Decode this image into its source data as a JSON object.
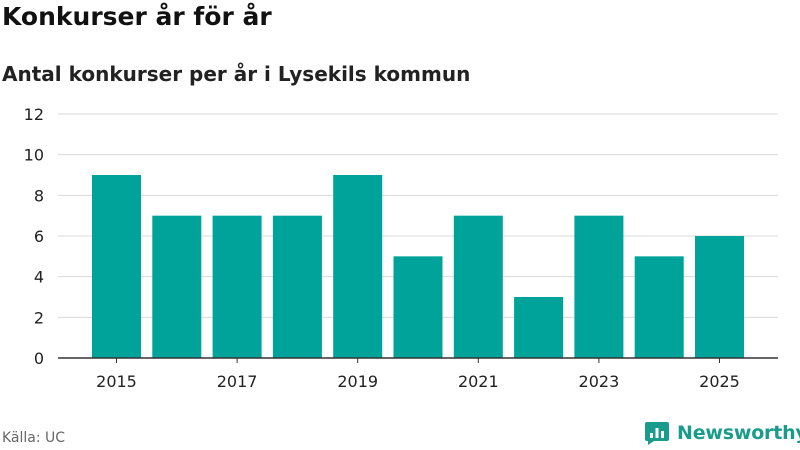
{
  "title": "Konkurser år för år",
  "subtitle": "Antal konkurser per år i Lysekils kommun",
  "source": "Källa: UC",
  "brand": {
    "name": "Newsworthy",
    "icon": "newsworthy-logo-icon"
  },
  "colors": {
    "bar": "#00a39a",
    "grid": "#d9d9d9",
    "axis": "#333333",
    "brand": "#1a9c8c"
  },
  "chart_data": {
    "type": "bar",
    "title": "Konkurser år för år",
    "subtitle": "Antal konkurser per år i Lysekils kommun",
    "xlabel": "",
    "ylabel": "",
    "categories": [
      "2015",
      "2016",
      "2017",
      "2018",
      "2019",
      "2020",
      "2021",
      "2022",
      "2023",
      "2024",
      "2025"
    ],
    "values": [
      9,
      7,
      7,
      7,
      9,
      5,
      7,
      3,
      7,
      5,
      6
    ],
    "ylim": [
      0,
      12
    ],
    "yticks": [
      0,
      2,
      4,
      6,
      8,
      10,
      12
    ],
    "xtick_labels": [
      "2015",
      "2017",
      "2019",
      "2021",
      "2023",
      "2025"
    ],
    "grid": true,
    "legend": "none"
  }
}
